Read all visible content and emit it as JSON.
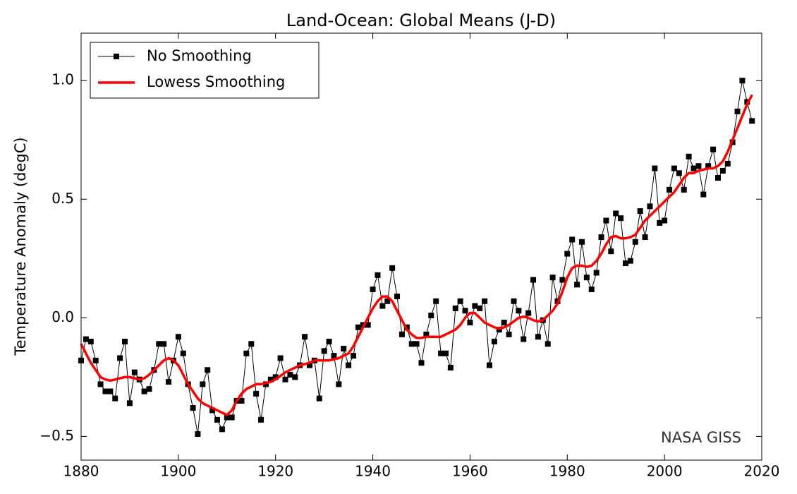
{
  "chart_data": {
    "type": "line",
    "title": "Land-Ocean: Global Means (J-D)",
    "ylabel": "Temperature Anomaly (degC)",
    "annotation": "NASA GISS",
    "legend": "upper left",
    "x": [
      1880,
      1881,
      1882,
      1883,
      1884,
      1885,
      1886,
      1887,
      1888,
      1889,
      1890,
      1891,
      1892,
      1893,
      1894,
      1895,
      1896,
      1897,
      1898,
      1899,
      1900,
      1901,
      1902,
      1903,
      1904,
      1905,
      1906,
      1907,
      1908,
      1909,
      1910,
      1911,
      1912,
      1913,
      1914,
      1915,
      1916,
      1917,
      1918,
      1919,
      1920,
      1921,
      1922,
      1923,
      1924,
      1925,
      1926,
      1927,
      1928,
      1929,
      1930,
      1931,
      1932,
      1933,
      1934,
      1935,
      1936,
      1937,
      1938,
      1939,
      1940,
      1941,
      1942,
      1943,
      1944,
      1945,
      1946,
      1947,
      1948,
      1949,
      1950,
      1951,
      1952,
      1953,
      1954,
      1955,
      1956,
      1957,
      1958,
      1959,
      1960,
      1961,
      1962,
      1963,
      1964,
      1965,
      1966,
      1967,
      1968,
      1969,
      1970,
      1971,
      1972,
      1973,
      1974,
      1975,
      1976,
      1977,
      1978,
      1979,
      1980,
      1981,
      1982,
      1983,
      1984,
      1985,
      1986,
      1987,
      1988,
      1989,
      1990,
      1991,
      1992,
      1993,
      1994,
      1995,
      1996,
      1997,
      1998,
      1999,
      2000,
      2001,
      2002,
      2003,
      2004,
      2005,
      2006,
      2007,
      2008,
      2009,
      2010,
      2011,
      2012,
      2013,
      2014,
      2015,
      2016,
      2017,
      2018
    ],
    "series": [
      {
        "name": "No Smoothing",
        "color": "#000000",
        "marker": "square",
        "values": [
          -0.18,
          -0.09,
          -0.1,
          -0.18,
          -0.28,
          -0.31,
          -0.31,
          -0.34,
          -0.17,
          -0.1,
          -0.36,
          -0.23,
          -0.26,
          -0.31,
          -0.3,
          -0.22,
          -0.11,
          -0.11,
          -0.27,
          -0.18,
          -0.08,
          -0.15,
          -0.28,
          -0.38,
          -0.49,
          -0.28,
          -0.22,
          -0.39,
          -0.43,
          -0.47,
          -0.42,
          -0.42,
          -0.35,
          -0.35,
          -0.15,
          -0.11,
          -0.32,
          -0.43,
          -0.28,
          -0.26,
          -0.25,
          -0.17,
          -0.26,
          -0.24,
          -0.25,
          -0.2,
          -0.08,
          -0.2,
          -0.18,
          -0.34,
          -0.14,
          -0.1,
          -0.16,
          -0.28,
          -0.13,
          -0.2,
          -0.16,
          -0.04,
          -0.03,
          -0.03,
          0.12,
          0.18,
          0.05,
          0.07,
          0.21,
          0.09,
          -0.07,
          -0.04,
          -0.11,
          -0.11,
          -0.19,
          -0.07,
          0.01,
          0.07,
          -0.15,
          -0.15,
          -0.21,
          0.04,
          0.07,
          0.03,
          -0.02,
          0.05,
          0.04,
          0.07,
          -0.2,
          -0.1,
          -0.05,
          -0.02,
          -0.07,
          0.07,
          0.03,
          -0.09,
          0.02,
          0.16,
          -0.08,
          -0.01,
          -0.11,
          0.17,
          0.07,
          0.16,
          0.27,
          0.33,
          0.14,
          0.32,
          0.17,
          0.12,
          0.19,
          0.34,
          0.41,
          0.28,
          0.44,
          0.42,
          0.23,
          0.24,
          0.32,
          0.45,
          0.34,
          0.47,
          0.63,
          0.4,
          0.41,
          0.54,
          0.63,
          0.61,
          0.54,
          0.68,
          0.63,
          0.64,
          0.52,
          0.64,
          0.71,
          0.59,
          0.62,
          0.65,
          0.74,
          0.87,
          1.0,
          0.91,
          0.83
        ]
      },
      {
        "name": "Lowess Smoothing",
        "color": "#ff0000",
        "values": [
          -0.11,
          -0.15,
          -0.19,
          -0.22,
          -0.25,
          -0.26,
          -0.265,
          -0.26,
          -0.255,
          -0.25,
          -0.25,
          -0.255,
          -0.26,
          -0.255,
          -0.24,
          -0.22,
          -0.2,
          -0.18,
          -0.17,
          -0.18,
          -0.2,
          -0.24,
          -0.28,
          -0.31,
          -0.34,
          -0.36,
          -0.37,
          -0.38,
          -0.39,
          -0.4,
          -0.41,
          -0.39,
          -0.35,
          -0.32,
          -0.3,
          -0.29,
          -0.28,
          -0.28,
          -0.275,
          -0.27,
          -0.26,
          -0.245,
          -0.23,
          -0.22,
          -0.21,
          -0.2,
          -0.195,
          -0.19,
          -0.18,
          -0.18,
          -0.18,
          -0.18,
          -0.175,
          -0.17,
          -0.16,
          -0.15,
          -0.12,
          -0.08,
          -0.04,
          0.0,
          0.04,
          0.07,
          0.09,
          0.09,
          0.07,
          0.03,
          -0.01,
          -0.05,
          -0.07,
          -0.085,
          -0.085,
          -0.08,
          -0.08,
          -0.08,
          -0.08,
          -0.07,
          -0.06,
          -0.05,
          -0.03,
          0.0,
          0.02,
          0.02,
          0.0,
          -0.02,
          -0.03,
          -0.04,
          -0.045,
          -0.04,
          -0.03,
          -0.015,
          0.0,
          0.005,
          0.0,
          -0.01,
          -0.015,
          -0.01,
          0.01,
          0.03,
          0.06,
          0.11,
          0.17,
          0.21,
          0.22,
          0.22,
          0.215,
          0.22,
          0.24,
          0.27,
          0.31,
          0.34,
          0.345,
          0.335,
          0.335,
          0.34,
          0.35,
          0.38,
          0.41,
          0.43,
          0.45,
          0.47,
          0.49,
          0.51,
          0.53,
          0.56,
          0.59,
          0.61,
          0.61,
          0.62,
          0.625,
          0.63,
          0.63,
          0.64,
          0.66,
          0.7,
          0.75,
          0.8,
          0.85,
          0.9,
          0.94
        ]
      }
    ],
    "xlim": [
      1880,
      2020
    ],
    "xticks": [
      1880,
      1900,
      1920,
      1940,
      1960,
      1980,
      2000,
      2020
    ],
    "ylim": [
      -0.6,
      1.2
    ],
    "yticks": [
      {
        "value": -0.5,
        "label": "−0.5"
      },
      {
        "value": 0,
        "label": "0.0"
      },
      0.5,
      {
        "value": 1,
        "label": "1.0"
      }
    ]
  }
}
